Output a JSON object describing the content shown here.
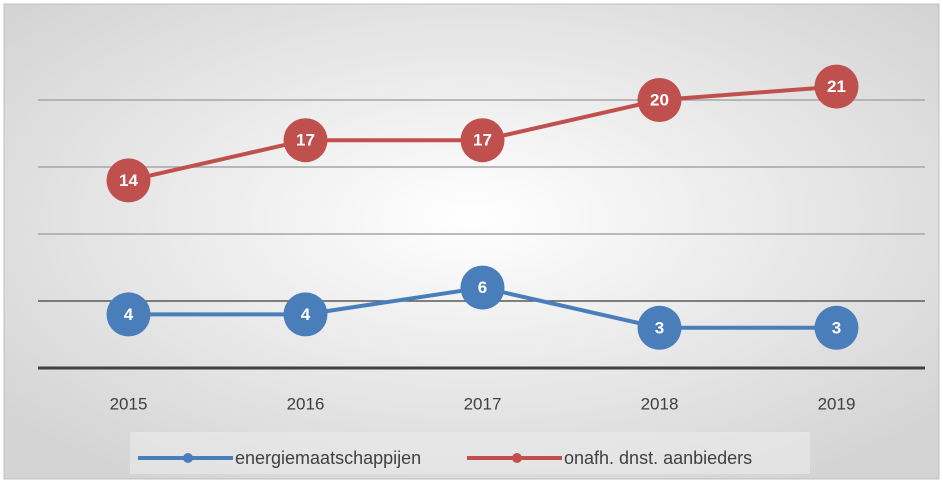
{
  "chart_data": {
    "type": "line",
    "categories": [
      "2015",
      "2016",
      "2017",
      "2018",
      "2019"
    ],
    "series": [
      {
        "name": "energiemaatschappijen",
        "color": "#4a7ebb",
        "values": [
          4,
          4,
          6,
          3,
          3
        ]
      },
      {
        "name": "onafh. dnst. aanbieders",
        "color": "#c0504d",
        "values": [
          14,
          17,
          17,
          20,
          21
        ]
      }
    ],
    "ylim": [
      0,
      25
    ],
    "yticks": [
      0,
      5,
      10,
      15,
      20
    ],
    "grid": true,
    "legend": "bottom"
  }
}
